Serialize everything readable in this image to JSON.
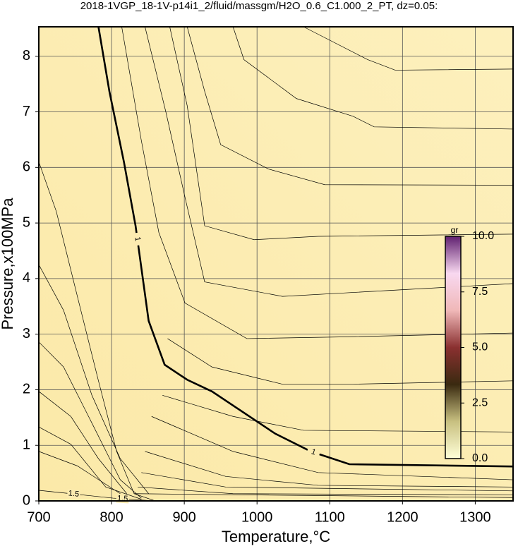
{
  "chart_data": {
    "type": "contour",
    "title": "2018-1VGP_18-1V-p14i1_2/fluid/massgm/H2O_0.6_C1.000_2_PT, dz=0.05:",
    "x_label": "Temperature,°C",
    "y_label": "Pressure,x100MPa",
    "xlim": [
      700,
      1352
    ],
    "ylim": [
      0,
      8.53
    ],
    "xticks": [
      700,
      800,
      900,
      1000,
      1100,
      1200,
      1300
    ],
    "yticks": [
      0,
      1,
      2,
      3,
      4,
      5,
      6,
      7,
      8
    ],
    "grid": true,
    "background": [
      "#fbe9a8",
      "#fdf0bd"
    ],
    "line_color": "#000000",
    "contours": [
      {
        "label": "1",
        "bold": true,
        "x": [
          782,
          797,
          817,
          833,
          851,
          873,
          904,
          938,
          1025,
          1074,
          1127,
          1352
        ],
        "y": [
          8.53,
          7.37,
          6.1,
          4.95,
          3.24,
          2.45,
          2.18,
          1.97,
          1.21,
          0.89,
          0.66,
          0.62
        ]
      },
      {
        "label": "1.5",
        "x": [
          700,
          744,
          802,
          860
        ],
        "y": [
          0.19,
          0.13,
          0.05,
          0
        ]
      },
      {
        "x": [
          1064,
          1152,
          1190,
          1352
        ],
        "y": [
          8.53,
          7.94,
          7.75,
          7.77
        ]
      },
      {
        "x": [
          967,
          982,
          1054,
          1132,
          1161,
          1352
        ],
        "y": [
          8.53,
          7.94,
          7.24,
          6.92,
          6.73,
          6.69
        ]
      },
      {
        "x": [
          904,
          928,
          950,
          1016,
          1093,
          1352
        ],
        "y": [
          8.53,
          7.37,
          6.41,
          5.97,
          5.69,
          5.68
        ]
      },
      {
        "x": [
          880,
          904,
          928,
          996,
          1084,
          1352
        ],
        "y": [
          8.53,
          7.11,
          4.95,
          4.7,
          4.76,
          4.8
        ]
      },
      {
        "x": [
          846,
          875,
          901,
          928,
          1035,
          1352
        ],
        "y": [
          8.53,
          6.98,
          5.46,
          3.94,
          3.68,
          3.91
        ]
      },
      {
        "x": [
          814,
          841,
          865,
          901,
          986,
          1113,
          1352
        ],
        "y": [
          8.53,
          6.48,
          4.83,
          3.56,
          2.92,
          2.95,
          3.02
        ]
      },
      {
        "x": [
          877,
          938,
          1035,
          1132,
          1352
        ],
        "y": [
          2.92,
          2.41,
          2.1,
          2.1,
          2.16
        ]
      },
      {
        "x": [
          870,
          967,
          1064,
          1352
        ],
        "y": [
          1.9,
          1.52,
          1.27,
          1.24
        ]
      },
      {
        "x": [
          855,
          967,
          1084,
          1352
        ],
        "y": [
          1.52,
          0.89,
          0.51,
          0.38
        ]
      },
      {
        "x": [
          846,
          957,
          1084,
          1352
        ],
        "y": [
          0.89,
          0.44,
          0.28,
          0.25
        ]
      },
      {
        "x": [
          841,
          957,
          1352
        ],
        "y": [
          0.51,
          0.25,
          0.18
        ]
      },
      {
        "x": [
          836,
          967,
          1352
        ],
        "y": [
          0.25,
          0.13,
          0.11
        ]
      },
      {
        "x": [
          831,
          1352
        ],
        "y": [
          0.13,
          0.06
        ]
      },
      {
        "x": [
          700,
          724,
          753,
          782,
          807,
          831,
          860
        ],
        "y": [
          6.1,
          5.21,
          3.68,
          2.16,
          0.89,
          0.13,
          0
        ]
      },
      {
        "x": [
          700,
          734,
          773,
          812,
          851
        ],
        "y": [
          4.25,
          3.43,
          1.9,
          0.76,
          0.13
        ]
      },
      {
        "x": [
          700,
          734,
          773,
          812,
          841
        ],
        "y": [
          2.86,
          2.41,
          1.4,
          0.38,
          0.05
        ]
      },
      {
        "x": [
          700,
          744,
          782,
          821
        ],
        "y": [
          1.97,
          1.52,
          0.76,
          0.13
        ]
      },
      {
        "x": [
          700,
          744,
          792,
          841
        ],
        "y": [
          1.33,
          1.02,
          0.25,
          0.03
        ]
      },
      {
        "x": [
          700,
          753,
          812
        ],
        "y": [
          0.89,
          0.63,
          0.13
        ]
      }
    ],
    "colorbar": {
      "label": "gr",
      "lim": [
        0,
        10
      ],
      "ticks": [
        {
          "value": 0,
          "label": "0.0"
        },
        {
          "value": 2.5,
          "label": "2.5"
        },
        {
          "value": 5,
          "label": "5.0"
        },
        {
          "value": 7.5,
          "label": "7.5"
        },
        {
          "value": 10,
          "label": "10.0"
        }
      ],
      "colors": [
        "#ffffd8",
        "#c8c080",
        "#3a2a10",
        "#8a3030",
        "#f0b8b8",
        "#f8d8f0",
        "#602070"
      ]
    }
  }
}
